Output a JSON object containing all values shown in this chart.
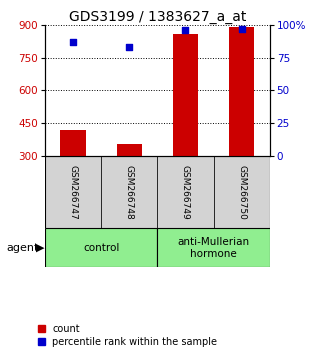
{
  "title": "GDS3199 / 1383627_a_at",
  "samples": [
    "GSM266747",
    "GSM266748",
    "GSM266749",
    "GSM266750"
  ],
  "counts": [
    420,
    355,
    860,
    890
  ],
  "percentiles": [
    87,
    83,
    96,
    97
  ],
  "ylim_left": [
    300,
    900
  ],
  "ylim_right": [
    0,
    100
  ],
  "yticks_left": [
    300,
    450,
    600,
    750,
    900
  ],
  "yticks_right": [
    0,
    25,
    50,
    75,
    100
  ],
  "bar_color": "#cc0000",
  "dot_color": "#0000cc",
  "bar_width": 0.45,
  "groups": [
    {
      "label": "control",
      "samples": [
        0,
        1
      ],
      "color": "#90ee90"
    },
    {
      "label": "anti-Mullerian\nhormone",
      "samples": [
        2,
        3
      ],
      "color": "#90ee90"
    }
  ],
  "agent_label": "agent",
  "legend_count_label": "count",
  "legend_pct_label": "percentile rank within the sample",
  "title_fontsize": 10,
  "tick_fontsize": 7.5,
  "sample_fontsize": 6.5,
  "group_fontsize": 7.5,
  "legend_fontsize": 7
}
